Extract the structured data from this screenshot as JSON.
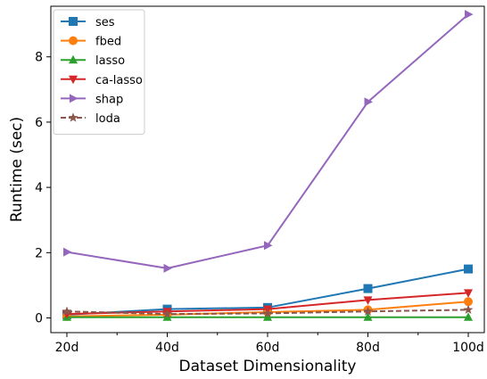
{
  "chart_data": {
    "type": "line",
    "title": "",
    "xlabel": "Dataset Dimensionality",
    "ylabel": "Runtime (sec)",
    "categories": [
      "20d",
      "40d",
      "60d",
      "80d",
      "100d"
    ],
    "ylim": [
      -0.45,
      9.55
    ],
    "yticks": [
      0,
      2,
      4,
      6,
      8
    ],
    "grid": false,
    "legend_position": "top-left",
    "series": [
      {
        "name": "ses",
        "values": [
          0.1,
          0.27,
          0.32,
          0.9,
          1.5
        ],
        "color": "#1f77b4",
        "marker": "square",
        "linestyle": "solid"
      },
      {
        "name": "fbed",
        "values": [
          0.05,
          0.1,
          0.18,
          0.25,
          0.5
        ],
        "color": "#ff7f0e",
        "marker": "circle",
        "linestyle": "solid"
      },
      {
        "name": "lasso",
        "values": [
          0.02,
          0.02,
          0.02,
          0.02,
          0.02
        ],
        "color": "#2ca02c",
        "marker": "triangle-up",
        "linestyle": "solid"
      },
      {
        "name": "ca-lasso",
        "values": [
          0.12,
          0.2,
          0.27,
          0.55,
          0.77
        ],
        "color": "#d62728",
        "marker": "triangle-down",
        "linestyle": "solid"
      },
      {
        "name": "shap",
        "values": [
          2.02,
          1.52,
          2.22,
          6.62,
          9.3
        ],
        "color": "#9467bd",
        "marker": "triangle-right",
        "linestyle": "solid"
      },
      {
        "name": "loda",
        "values": [
          0.2,
          0.12,
          0.14,
          0.2,
          0.25
        ],
        "color": "#8c564b",
        "marker": "star",
        "linestyle": "dashed"
      }
    ]
  }
}
